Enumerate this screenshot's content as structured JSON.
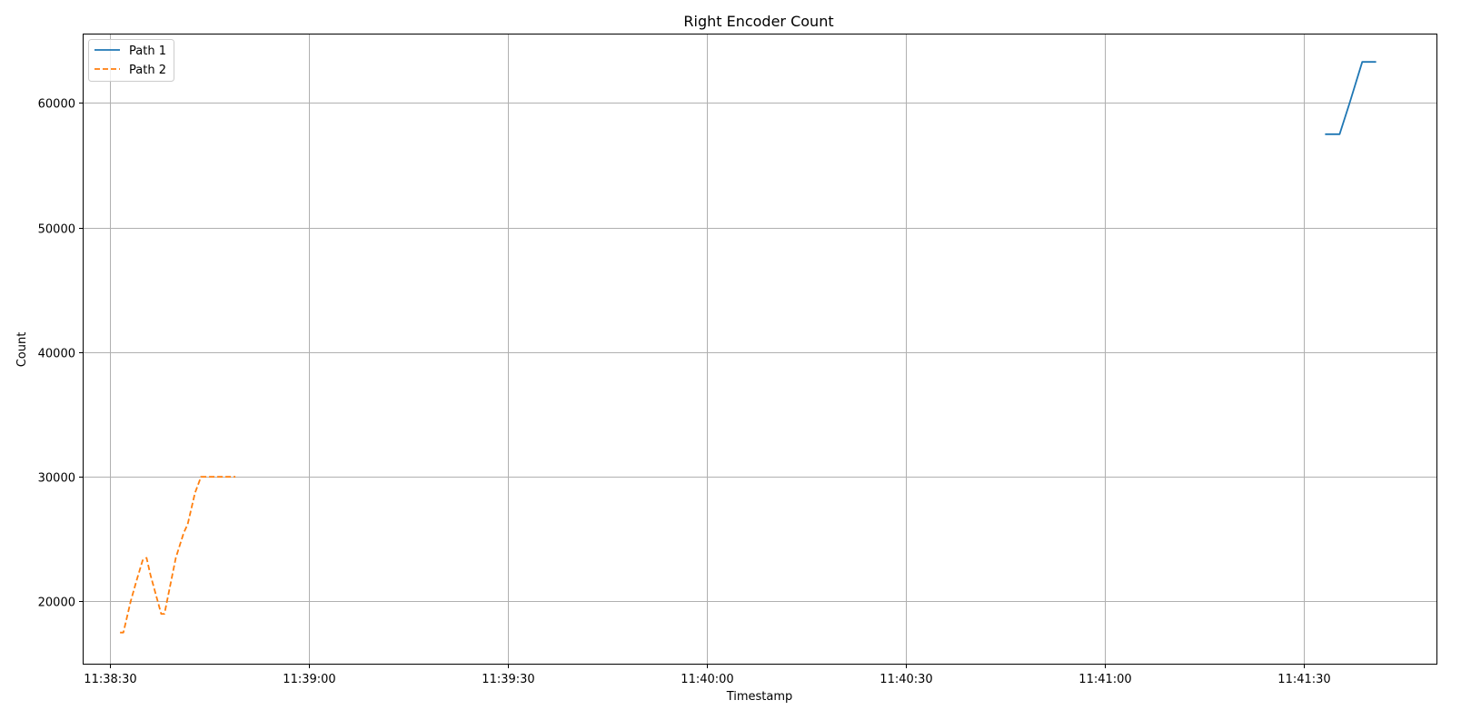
{
  "chart_data": {
    "type": "line",
    "title": "Right Encoder Count",
    "xlabel": "Timestamp",
    "ylabel": "Count",
    "x_tick_labels": [
      "11:38:30",
      "11:39:00",
      "11:39:30",
      "11:40:00",
      "11:40:30",
      "11:41:00",
      "11:41:30"
    ],
    "y_tick_labels": [
      "20000",
      "30000",
      "40000",
      "50000",
      "60000"
    ],
    "y_ticks": [
      20000,
      30000,
      40000,
      50000,
      60000
    ],
    "xlim": [
      "11:38:26",
      "11:41:50"
    ],
    "ylim": [
      15000,
      65500
    ],
    "grid": true,
    "legend_position": "upper-left",
    "series": [
      {
        "name": "Path 1",
        "color": "#1f77b4",
        "style": "solid",
        "points": [
          {
            "x": "11:41:33.2",
            "y": 57500
          },
          {
            "x": "11:41:35.4",
            "y": 57500
          },
          {
            "x": "11:41:36.9",
            "y": 60000
          },
          {
            "x": "11:41:38.8",
            "y": 63300
          },
          {
            "x": "11:41:40.9",
            "y": 63300
          }
        ]
      },
      {
        "name": "Path 2",
        "color": "#ff7f0e",
        "style": "dashed",
        "points": [
          {
            "x": "11:38:31.5",
            "y": 17500
          },
          {
            "x": "11:38:32.0",
            "y": 17500
          },
          {
            "x": "11:38:33.1",
            "y": 20000
          },
          {
            "x": "11:38:34.0",
            "y": 21700
          },
          {
            "x": "11:38:34.9",
            "y": 23300
          },
          {
            "x": "11:38:35.5",
            "y": 23500
          },
          {
            "x": "11:38:36.1",
            "y": 22100
          },
          {
            "x": "11:38:37.7",
            "y": 19000
          },
          {
            "x": "11:38:38.2",
            "y": 19000
          },
          {
            "x": "11:38:39.9",
            "y": 23500
          },
          {
            "x": "11:38:41.1",
            "y": 25500
          },
          {
            "x": "11:38:41.7",
            "y": 26200
          },
          {
            "x": "11:38:42.8",
            "y": 28700
          },
          {
            "x": "11:38:43.7",
            "y": 30000
          },
          {
            "x": "11:38:48.9",
            "y": 30000
          }
        ]
      }
    ]
  }
}
